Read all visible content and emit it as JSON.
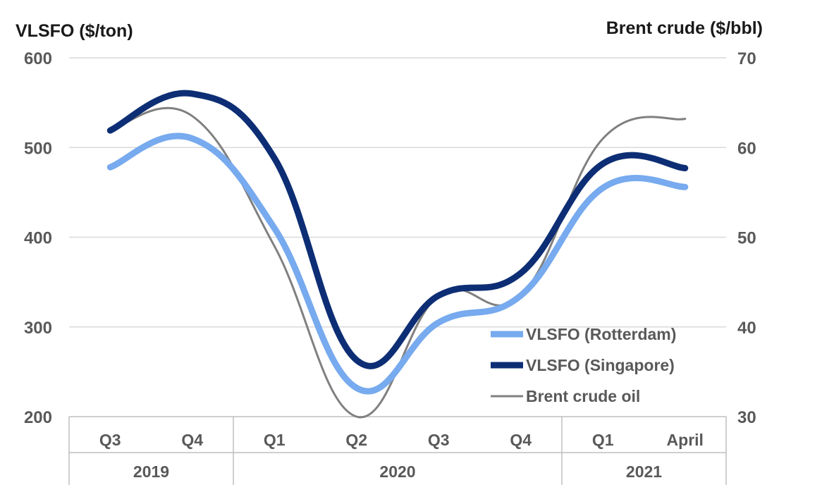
{
  "chart_data": {
    "type": "line",
    "left_axis_title": "VLSFO ($/ton)",
    "right_axis_title": "Brent crude ($/bbl)",
    "left_ylim": [
      200,
      600
    ],
    "left_ticks": [
      200,
      300,
      400,
      500,
      600
    ],
    "right_ylim": [
      30,
      70
    ],
    "right_ticks": [
      30,
      40,
      50,
      60,
      70
    ],
    "categories": [
      "Q3",
      "Q4",
      "Q1",
      "Q2",
      "Q3",
      "Q4",
      "Q1",
      "April"
    ],
    "groups": [
      {
        "label": "2019",
        "span": 2
      },
      {
        "label": "2020",
        "span": 4
      },
      {
        "label": "2021",
        "span": 2
      }
    ],
    "grid": true,
    "legend_position": "bottom-right",
    "series": [
      {
        "name": "VLSFO (Rotterdam)",
        "axis": "left",
        "color": "#77AAEE",
        "values": [
          478,
          510,
          410,
          232,
          305,
          335,
          455,
          456
        ]
      },
      {
        "name": "VLSFO (Singapore)",
        "axis": "left",
        "color": "#0D2E74",
        "values": [
          519,
          560,
          488,
          263,
          335,
          360,
          482,
          477
        ]
      },
      {
        "name": "Brent crude oil",
        "axis": "right",
        "color": "#808080",
        "values": [
          62,
          63.5,
          49,
          30,
          43.5,
          43.5,
          61,
          63.2
        ]
      }
    ]
  }
}
